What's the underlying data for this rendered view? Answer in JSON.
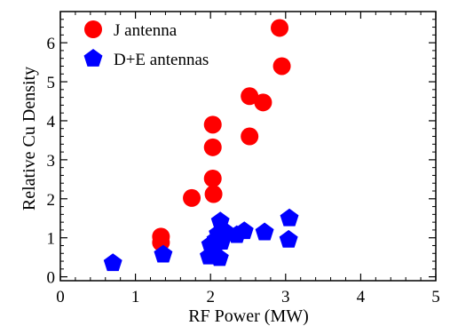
{
  "chart_data": {
    "type": "scatter",
    "title": "",
    "xlabel": "RF Power (MW)",
    "ylabel": "Relative Cu Density",
    "xlim": [
      0,
      5
    ],
    "ylim": [
      -0.1,
      6.8
    ],
    "x_ticks": [
      0,
      1,
      2,
      3,
      4,
      5
    ],
    "y_ticks": [
      0,
      1,
      2,
      3,
      4,
      5,
      6
    ],
    "grid": false,
    "legend_position": "top-left",
    "series": [
      {
        "name": "J antenna",
        "marker": "circle",
        "color": "#ff0000",
        "points": [
          {
            "x": 1.34,
            "y": 1.03
          },
          {
            "x": 1.34,
            "y": 0.88
          },
          {
            "x": 1.75,
            "y": 2.02
          },
          {
            "x": 2.03,
            "y": 3.9
          },
          {
            "x": 2.03,
            "y": 3.32
          },
          {
            "x": 2.03,
            "y": 2.52
          },
          {
            "x": 2.04,
            "y": 2.12
          },
          {
            "x": 2.52,
            "y": 4.63
          },
          {
            "x": 2.52,
            "y": 3.6
          },
          {
            "x": 2.7,
            "y": 4.47
          },
          {
            "x": 2.92,
            "y": 6.38
          },
          {
            "x": 2.95,
            "y": 5.4
          }
        ]
      },
      {
        "name": "D+E antennas",
        "marker": "pentagon",
        "color": "#0000ff",
        "points": [
          {
            "x": 0.7,
            "y": 0.35
          },
          {
            "x": 1.37,
            "y": 0.57
          },
          {
            "x": 1.98,
            "y": 0.52
          },
          {
            "x": 2.0,
            "y": 0.82
          },
          {
            "x": 2.05,
            "y": 0.72
          },
          {
            "x": 2.07,
            "y": 0.95
          },
          {
            "x": 2.1,
            "y": 1.1
          },
          {
            "x": 2.12,
            "y": 0.48
          },
          {
            "x": 2.13,
            "y": 1.42
          },
          {
            "x": 2.15,
            "y": 0.9
          },
          {
            "x": 2.2,
            "y": 1.15
          },
          {
            "x": 2.35,
            "y": 1.07
          },
          {
            "x": 2.45,
            "y": 1.17
          },
          {
            "x": 2.72,
            "y": 1.14
          },
          {
            "x": 3.04,
            "y": 0.95
          },
          {
            "x": 3.05,
            "y": 1.5
          }
        ]
      }
    ]
  }
}
